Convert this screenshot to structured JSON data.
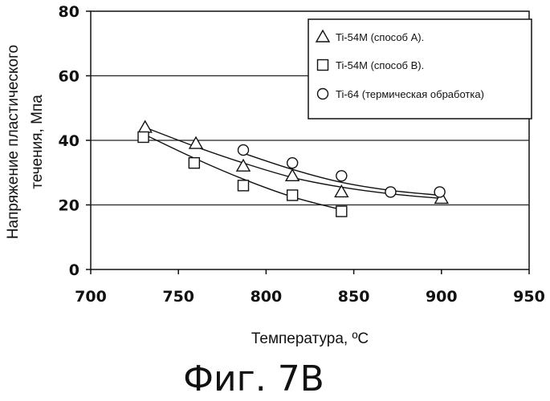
{
  "chart_data": {
    "type": "scatter",
    "xlabel": "Температура, ºС",
    "ylabel_lines": [
      "Напряжение пластического",
      "течения, Мпа"
    ],
    "xlim": [
      700,
      950
    ],
    "ylim": [
      0,
      80
    ],
    "x_ticks": [
      700,
      750,
      800,
      850,
      900,
      950
    ],
    "y_ticks": [
      0,
      20,
      40,
      60,
      80
    ],
    "grid": "horizontal",
    "legend_position": "top-right",
    "series": [
      {
        "name": "Ti-54M (способ А).",
        "marker": "triangle",
        "x": [
          731,
          760,
          787,
          815,
          843,
          900
        ],
        "y": [
          44,
          39,
          32,
          29,
          24,
          22
        ],
        "trend": [
          [
            731,
            44
          ],
          [
            760,
            38
          ],
          [
            787,
            33
          ],
          [
            815,
            28.5
          ],
          [
            843,
            25.5
          ],
          [
            870,
            23.5
          ],
          [
            900,
            22
          ]
        ]
      },
      {
        "name": "Ti-54M (способ В).",
        "marker": "square",
        "x": [
          730,
          759,
          787,
          815,
          843
        ],
        "y": [
          41,
          33,
          26,
          23,
          18
        ],
        "trend": [
          [
            730,
            42
          ],
          [
            759,
            34.5
          ],
          [
            787,
            28
          ],
          [
            815,
            22.5
          ],
          [
            843,
            18.5
          ]
        ]
      },
      {
        "name": "Ti-64 (термическая обработка)",
        "marker": "circle",
        "x": [
          787,
          815,
          843,
          871,
          899
        ],
        "y": [
          37,
          33,
          29,
          24,
          24
        ],
        "trend": [
          [
            787,
            36
          ],
          [
            815,
            31
          ],
          [
            843,
            27
          ],
          [
            871,
            24.5
          ],
          [
            899,
            23
          ]
        ]
      }
    ]
  },
  "caption": "Фиг. 7В",
  "colors": {
    "ink": "#111111",
    "grid": "#222222",
    "background": "#ffffff"
  }
}
